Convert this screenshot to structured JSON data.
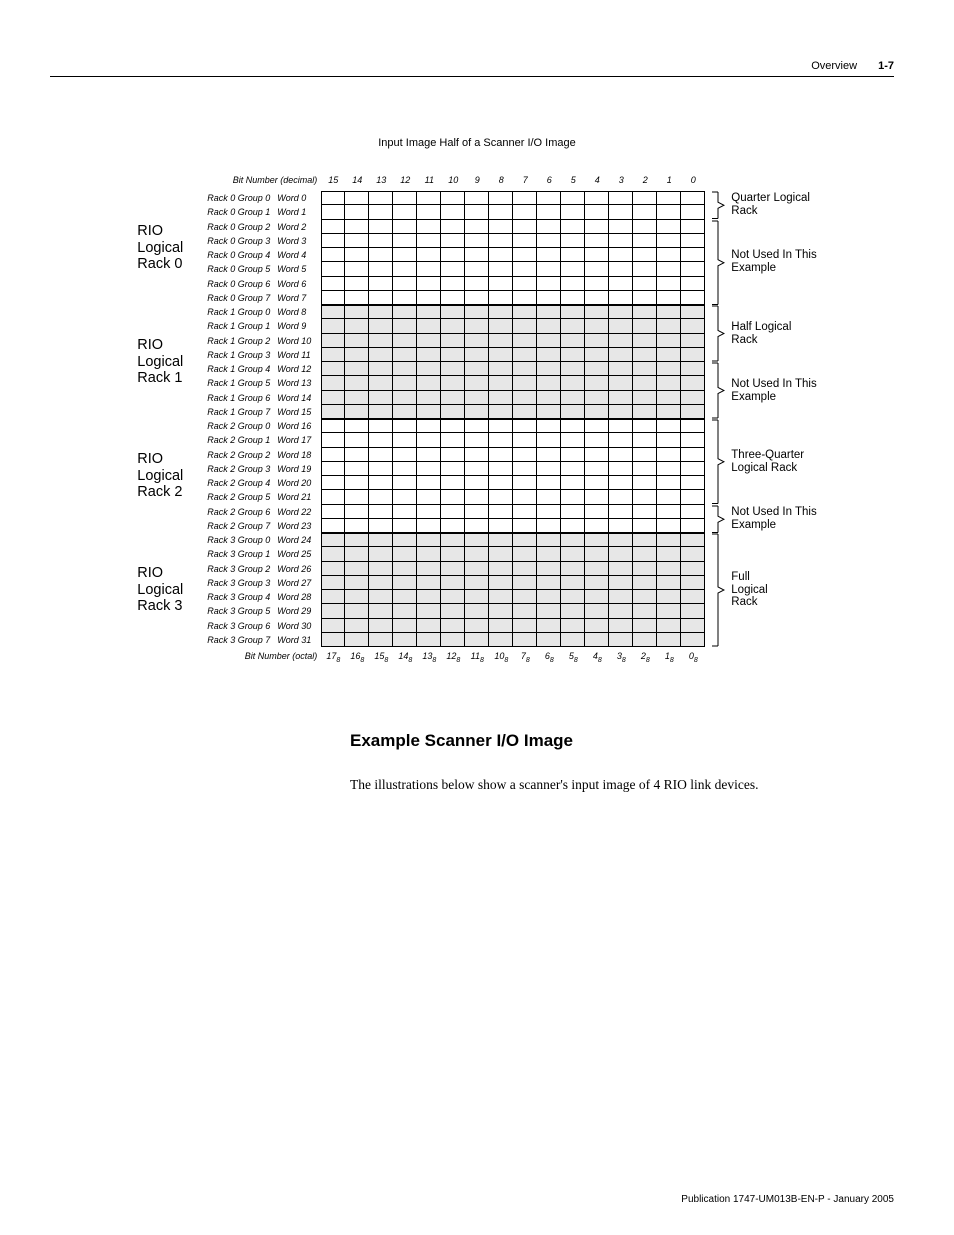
{
  "header": {
    "section": "Overview",
    "page_num": "1-7"
  },
  "figure": {
    "title": "Input Image Half of a Scanner I/O Image"
  },
  "bit_header_label_top": "Bit Number (decimal)",
  "bit_header_label_bottom": "Bit Number (octal)",
  "bits_decimal": [
    "15",
    "14",
    "13",
    "12",
    "11",
    "10",
    "9",
    "8",
    "7",
    "6",
    "5",
    "4",
    "3",
    "2",
    "1",
    "0"
  ],
  "bits_octal": [
    "17",
    "16",
    "15",
    "14",
    "13",
    "12",
    "11",
    "10",
    "7",
    "6",
    "5",
    "4",
    "3",
    "2",
    "1",
    "0"
  ],
  "racks": [
    {
      "label_lines": [
        "RIO",
        "Logical",
        "Rack 0"
      ],
      "shaded": false,
      "rows": [
        {
          "group": "Rack 0 Group 0",
          "word": "Word 0"
        },
        {
          "group": "Rack 0 Group 1",
          "word": "Word 1"
        },
        {
          "group": "Rack 0 Group 2",
          "word": "Word 2"
        },
        {
          "group": "Rack 0 Group 3",
          "word": "Word 3"
        },
        {
          "group": "Rack 0 Group 4",
          "word": "Word 4"
        },
        {
          "group": "Rack 0 Group 5",
          "word": "Word 5"
        },
        {
          "group": "Rack 0 Group 6",
          "word": "Word 6"
        },
        {
          "group": "Rack 0 Group 7",
          "word": "Word 7"
        }
      ],
      "annotations": [
        {
          "rows": 2,
          "text_lines": [
            "Quarter Logical",
            "Rack"
          ]
        },
        {
          "rows": 6,
          "text_lines": [
            "Not Used In This",
            "Example"
          ]
        }
      ]
    },
    {
      "label_lines": [
        "RIO",
        "Logical",
        "Rack 1"
      ],
      "shaded": true,
      "rows": [
        {
          "group": "Rack 1 Group 0",
          "word": "Word 8"
        },
        {
          "group": "Rack 1 Group 1",
          "word": "Word 9"
        },
        {
          "group": "Rack 1 Group 2",
          "word": "Word 10"
        },
        {
          "group": "Rack 1 Group 3",
          "word": "Word 11"
        },
        {
          "group": "Rack 1 Group 4",
          "word": "Word 12"
        },
        {
          "group": "Rack 1 Group 5",
          "word": "Word 13"
        },
        {
          "group": "Rack 1 Group 6",
          "word": "Word 14"
        },
        {
          "group": "Rack 1 Group 7",
          "word": "Word 15"
        }
      ],
      "annotations": [
        {
          "rows": 4,
          "text_lines": [
            "Half  Logical",
            "Rack"
          ]
        },
        {
          "rows": 4,
          "text_lines": [
            "Not Used In This",
            "Example"
          ]
        }
      ]
    },
    {
      "label_lines": [
        "RIO",
        "Logical",
        "Rack 2"
      ],
      "shaded": false,
      "rows": [
        {
          "group": "Rack 2 Group 0",
          "word": "Word 16"
        },
        {
          "group": "Rack 2 Group 1",
          "word": "Word 17"
        },
        {
          "group": "Rack 2 Group 2",
          "word": "Word 18"
        },
        {
          "group": "Rack 2 Group 3",
          "word": "Word 19"
        },
        {
          "group": "Rack 2 Group 4",
          "word": "Word 20"
        },
        {
          "group": "Rack 2 Group 5",
          "word": "Word 21"
        },
        {
          "group": "Rack 2 Group 6",
          "word": "Word 22"
        },
        {
          "group": "Rack 2 Group 7",
          "word": "Word 23"
        }
      ],
      "annotations": [
        {
          "rows": 6,
          "text_lines": [
            "Three-Quarter",
            "Logical Rack"
          ]
        },
        {
          "rows": 2,
          "text_lines": [
            "Not Used In This",
            "Example"
          ]
        }
      ]
    },
    {
      "label_lines": [
        "RIO",
        "Logical",
        "Rack 3"
      ],
      "shaded": true,
      "rows": [
        {
          "group": "Rack 3 Group 0",
          "word": "Word 24"
        },
        {
          "group": "Rack 3 Group 1",
          "word": "Word 25"
        },
        {
          "group": "Rack 3 Group 2",
          "word": "Word 26"
        },
        {
          "group": "Rack 3 Group 3",
          "word": "Word 27"
        },
        {
          "group": "Rack 3 Group 4",
          "word": "Word 28"
        },
        {
          "group": "Rack 3 Group 5",
          "word": "Word 29"
        },
        {
          "group": "Rack 3 Group 6",
          "word": "Word 30"
        },
        {
          "group": "Rack 3 Group 7",
          "word": "Word 31"
        }
      ],
      "annotations": [
        {
          "rows": 8,
          "text_lines": [
            "Full",
            "Logical",
            "Rack"
          ]
        }
      ]
    }
  ],
  "section_heading": "Example Scanner I/O Image",
  "body_text": "The illustrations below show a scanner's input image of 4 RIO link devices.",
  "footer": "Publication 1747-UM013B-EN-P - January 2005",
  "colors": {
    "shade": "#e7e7e7",
    "border": "#000000",
    "background": "#ffffff",
    "text": "#000000"
  }
}
